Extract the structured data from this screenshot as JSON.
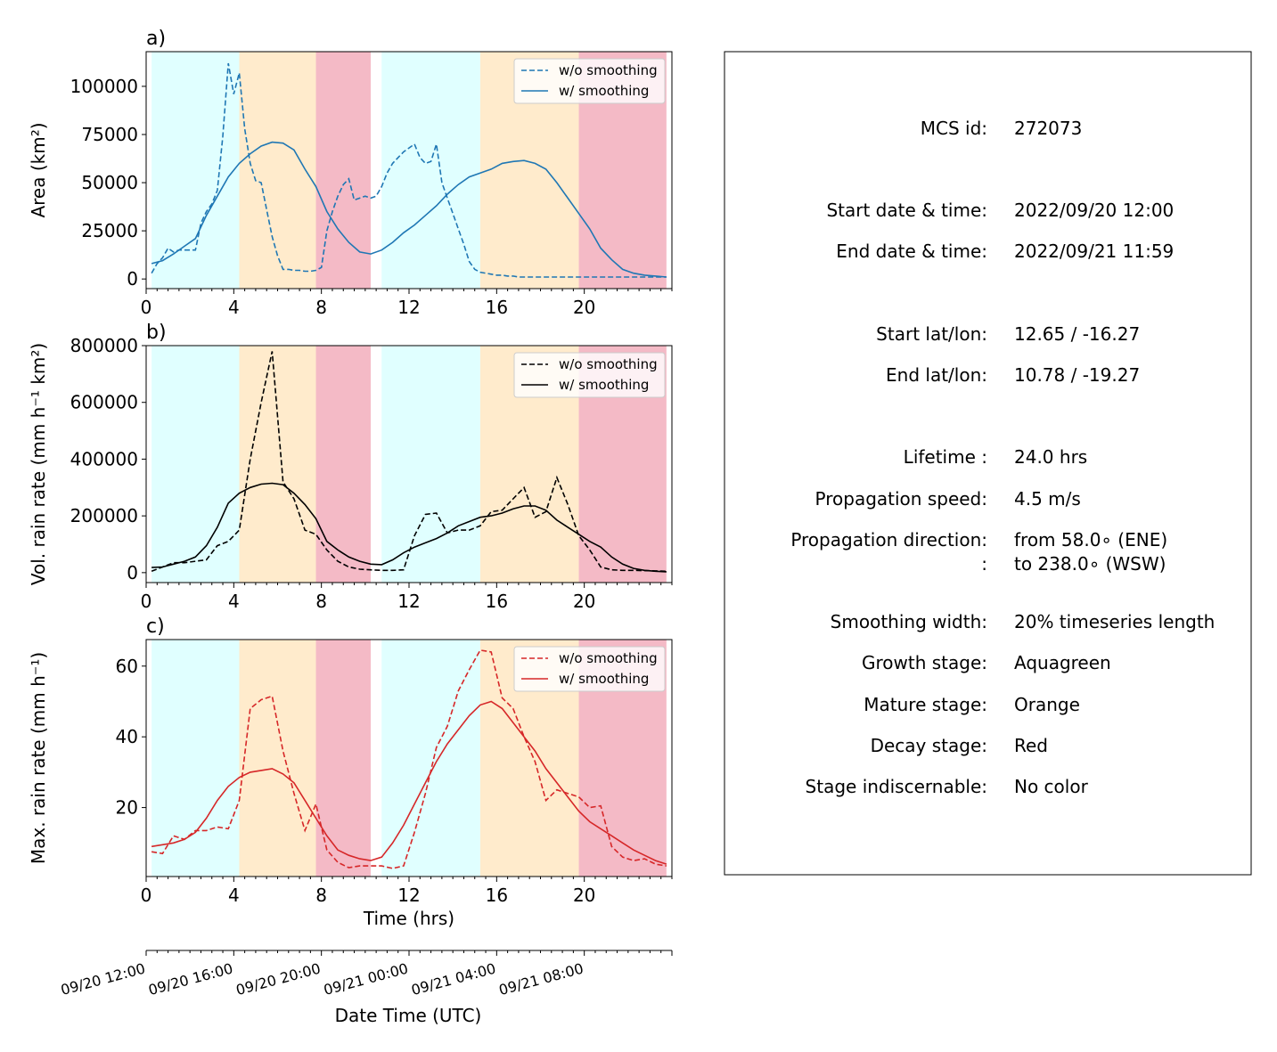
{
  "chart_data": [
    {
      "type": "line",
      "panel_label": "a)",
      "ylabel": "Area  (km²)",
      "xlim": [
        0,
        24
      ],
      "ylim": [
        -5000,
        118000
      ],
      "yticks": [
        0,
        25000,
        50000,
        75000,
        100000
      ],
      "xticks": [
        0,
        4,
        8,
        12,
        16,
        20
      ],
      "color": "#1f77b4",
      "legend": "top-right",
      "series": [
        {
          "name": "w/o smoothing",
          "style": "dashed",
          "x": [
            0.25,
            0.5,
            0.75,
            1.0,
            1.25,
            1.5,
            1.75,
            2.0,
            2.25,
            2.5,
            2.75,
            3.0,
            3.25,
            3.5,
            3.75,
            4.0,
            4.25,
            4.5,
            4.75,
            5.0,
            5.25,
            5.5,
            5.75,
            6.0,
            6.25,
            6.5,
            6.75,
            7.0,
            7.25,
            7.5,
            7.75,
            8.0,
            8.25,
            8.5,
            8.75,
            9.0,
            9.25,
            9.5,
            9.75,
            10.0,
            10.25,
            10.5,
            10.75,
            11.0,
            11.25,
            11.5,
            11.75,
            12.0,
            12.25,
            12.5,
            12.75,
            13.0,
            13.25,
            13.5,
            13.75,
            14.0,
            14.25,
            14.5,
            14.75,
            15.0,
            15.25,
            15.5,
            15.75,
            16.0,
            16.25,
            16.5,
            16.75,
            17.0,
            17.25,
            17.5,
            17.75,
            18.0,
            18.25,
            18.5,
            18.75,
            19.0,
            19.25,
            19.5,
            19.75,
            20.0,
            20.25,
            20.5,
            20.75,
            21.0,
            21.25,
            21.5,
            21.75,
            22.0,
            22.25,
            22.5,
            22.75,
            23.0,
            23.25,
            23.5,
            23.75
          ],
          "y": [
            3000,
            8000,
            11000,
            16000,
            14000,
            15000,
            15000,
            15000,
            15000,
            29000,
            35000,
            39000,
            46000,
            74000,
            112000,
            96000,
            107000,
            78000,
            60000,
            51000,
            50000,
            36000,
            22000,
            12000,
            5000,
            5000,
            4500,
            4500,
            4000,
            4000,
            4500,
            6000,
            25000,
            35000,
            43000,
            49000,
            52000,
            41000,
            42000,
            43000,
            42000,
            43000,
            48000,
            55000,
            60000,
            63000,
            66000,
            68000,
            70000,
            63000,
            60000,
            61000,
            70000,
            50000,
            42000,
            34000,
            26000,
            18000,
            9000,
            5000,
            3500,
            3000,
            2500,
            2000,
            2000,
            1500,
            1500,
            1000,
            1000,
            1000,
            1000,
            1000,
            1000,
            1000,
            1000,
            1000,
            1000,
            1000,
            1000,
            1000,
            1000,
            1000,
            1000,
            1000,
            1000,
            1000,
            1000,
            1000,
            1000,
            1000,
            1000,
            1000,
            1000,
            1000,
            1000
          ]
        },
        {
          "name": "w/ smoothing",
          "style": "solid",
          "x": [
            0.25,
            0.75,
            1.25,
            1.75,
            2.25,
            2.75,
            3.25,
            3.75,
            4.25,
            4.75,
            5.25,
            5.75,
            6.25,
            6.75,
            7.25,
            7.75,
            8.25,
            8.75,
            9.25,
            9.75,
            10.25,
            10.75,
            11.25,
            11.75,
            12.25,
            12.75,
            13.25,
            13.75,
            14.25,
            14.75,
            15.25,
            15.75,
            16.25,
            16.75,
            17.25,
            17.75,
            18.25,
            18.75,
            19.25,
            19.75,
            20.25,
            20.75,
            21.25,
            21.75,
            22.25,
            22.75,
            23.25,
            23.75
          ],
          "y": [
            8000,
            9500,
            13000,
            17000,
            21000,
            33000,
            43000,
            53000,
            60000,
            65000,
            69000,
            71000,
            70500,
            67000,
            57000,
            48000,
            35000,
            26000,
            19000,
            14000,
            13000,
            15000,
            19000,
            24000,
            28000,
            33000,
            38000,
            44000,
            49000,
            53000,
            55000,
            57000,
            60000,
            61000,
            61500,
            60000,
            57000,
            50000,
            42000,
            34000,
            26000,
            16000,
            10000,
            5000,
            3000,
            2000,
            1500,
            1000
          ]
        }
      ]
    },
    {
      "type": "line",
      "panel_label": "b)",
      "ylabel": "Vol. rain rate (mm h⁻¹ km²)",
      "xlim": [
        0,
        24
      ],
      "ylim": [
        -35000,
        800000
      ],
      "yticks": [
        0,
        200000,
        400000,
        600000,
        800000
      ],
      "xticks": [
        0,
        4,
        8,
        12,
        16,
        20
      ],
      "color": "#000000",
      "legend": "top-right",
      "series": [
        {
          "name": "w/o smoothing",
          "style": "dashed",
          "x": [
            0.25,
            0.75,
            1.25,
            1.75,
            2.25,
            2.75,
            3.25,
            3.75,
            4.25,
            4.75,
            5.25,
            5.75,
            6.25,
            6.75,
            7.25,
            7.75,
            8.25,
            8.75,
            9.25,
            9.75,
            10.25,
            10.75,
            11.25,
            11.75,
            12.25,
            12.75,
            13.25,
            13.75,
            14.25,
            14.75,
            15.25,
            15.75,
            16.25,
            16.75,
            17.25,
            17.75,
            18.25,
            18.75,
            19.25,
            19.75,
            20.25,
            20.75,
            21.25,
            21.75,
            22.25,
            22.75,
            23.25,
            23.75
          ],
          "y": [
            5000,
            20000,
            35000,
            35000,
            40000,
            45000,
            95000,
            110000,
            150000,
            400000,
            600000,
            780000,
            320000,
            260000,
            150000,
            135000,
            80000,
            40000,
            20000,
            12000,
            10000,
            8000,
            8000,
            10000,
            130000,
            205000,
            210000,
            140000,
            150000,
            150000,
            165000,
            215000,
            220000,
            260000,
            300000,
            195000,
            215000,
            335000,
            240000,
            130000,
            80000,
            20000,
            10000,
            8000,
            8000,
            7000,
            6000,
            5000
          ]
        },
        {
          "name": "w/ smoothing",
          "style": "solid",
          "x": [
            0.25,
            0.75,
            1.25,
            1.75,
            2.25,
            2.75,
            3.25,
            3.75,
            4.25,
            4.75,
            5.25,
            5.75,
            6.25,
            6.75,
            7.25,
            7.75,
            8.25,
            8.75,
            9.25,
            9.75,
            10.25,
            10.75,
            11.25,
            11.75,
            12.25,
            12.75,
            13.25,
            13.75,
            14.25,
            14.75,
            15.25,
            15.75,
            16.25,
            16.75,
            17.25,
            17.75,
            18.25,
            18.75,
            19.25,
            19.75,
            20.25,
            20.75,
            21.25,
            21.75,
            22.25,
            22.75,
            23.25,
            23.75
          ],
          "y": [
            18000,
            20000,
            30000,
            40000,
            55000,
            95000,
            160000,
            245000,
            280000,
            300000,
            312000,
            315000,
            310000,
            280000,
            240000,
            190000,
            110000,
            80000,
            55000,
            40000,
            30000,
            28000,
            45000,
            70000,
            90000,
            105000,
            120000,
            140000,
            165000,
            180000,
            195000,
            200000,
            210000,
            225000,
            235000,
            235000,
            220000,
            185000,
            160000,
            135000,
            110000,
            90000,
            55000,
            30000,
            15000,
            8000,
            5000,
            3000
          ]
        }
      ]
    },
    {
      "type": "line",
      "panel_label": "c)",
      "ylabel": "Max. rain rate  (mm h⁻¹)",
      "xlim": [
        0,
        24
      ],
      "ylim": [
        0.5,
        67.5
      ],
      "yticks": [
        20,
        40,
        60
      ],
      "xticks": [
        0,
        4,
        8,
        12,
        16,
        20
      ],
      "xlabel": "Time (hrs)",
      "color": "#d62728",
      "legend": "top-right",
      "series": [
        {
          "name": "w/o smoothing",
          "style": "dashed",
          "x": [
            0.25,
            0.75,
            1.25,
            1.75,
            2.25,
            2.75,
            3.25,
            3.75,
            4.25,
            4.75,
            5.25,
            5.75,
            6.25,
            6.75,
            7.25,
            7.75,
            8.25,
            8.75,
            9.25,
            9.75,
            10.25,
            10.75,
            11.25,
            11.75,
            12.25,
            12.75,
            13.25,
            13.75,
            14.25,
            14.75,
            15.25,
            15.75,
            16.25,
            16.75,
            17.25,
            17.75,
            18.25,
            18.75,
            19.25,
            19.75,
            20.25,
            20.75,
            21.25,
            21.75,
            22.25,
            22.75,
            23.25,
            23.75
          ],
          "y": [
            7.5,
            7,
            12,
            11,
            13.5,
            13.5,
            14.5,
            14,
            22,
            48,
            50.5,
            51.5,
            36,
            24,
            13.5,
            21,
            8,
            4.5,
            3,
            3.5,
            3.5,
            3.5,
            2.8,
            3.5,
            13,
            24,
            37,
            43,
            53,
            59,
            64.5,
            64,
            51,
            48,
            40,
            33,
            22,
            25,
            24,
            23,
            20,
            20.5,
            9,
            6,
            5,
            5.5,
            4,
            3.5
          ]
        },
        {
          "name": "w/ smoothing",
          "style": "solid",
          "x": [
            0.25,
            0.75,
            1.25,
            1.75,
            2.25,
            2.75,
            3.25,
            3.75,
            4.25,
            4.75,
            5.25,
            5.75,
            6.25,
            6.75,
            7.25,
            7.75,
            8.25,
            8.75,
            9.25,
            9.75,
            10.25,
            10.75,
            11.25,
            11.75,
            12.25,
            12.75,
            13.25,
            13.75,
            14.25,
            14.75,
            15.25,
            15.75,
            16.25,
            16.75,
            17.25,
            17.75,
            18.25,
            18.75,
            19.25,
            19.75,
            20.25,
            20.75,
            21.25,
            21.75,
            22.25,
            22.75,
            23.25,
            23.75
          ],
          "y": [
            9,
            9.5,
            10,
            11,
            13,
            17,
            22,
            26,
            28.5,
            30,
            30.5,
            31,
            29.5,
            27,
            22,
            17,
            12,
            8,
            6.5,
            5.5,
            5,
            6,
            10,
            15,
            21,
            27,
            33,
            38,
            42,
            46,
            49,
            50,
            48,
            44,
            40,
            36,
            31,
            27,
            23,
            19,
            16,
            14,
            12,
            10,
            8,
            6.5,
            5,
            4
          ]
        }
      ]
    }
  ],
  "stages": [
    {
      "name": "growth",
      "start": 0.25,
      "end": 4.25,
      "color": "#e0ffff"
    },
    {
      "name": "mature",
      "start": 4.25,
      "end": 7.75,
      "color": "#ffebcc"
    },
    {
      "name": "decay",
      "start": 7.75,
      "end": 10.25,
      "color": "#f4bac6"
    },
    {
      "name": "growth",
      "start": 10.75,
      "end": 15.25,
      "color": "#e0ffff"
    },
    {
      "name": "mature",
      "start": 15.25,
      "end": 19.75,
      "color": "#ffebcc"
    },
    {
      "name": "decay",
      "start": 19.75,
      "end": 23.75,
      "color": "#f4bac6"
    }
  ],
  "date_axis": {
    "labels": [
      "09/20 12:00",
      "09/20 16:00",
      "09/20 20:00",
      "09/21 00:00",
      "09/21 04:00",
      "09/21 08:00"
    ],
    "xlabel": "Date Time (UTC)"
  },
  "info": {
    "mcs_id_label": "MCS id:",
    "mcs_id_value": "272073",
    "start_time_label": "Start date & time:",
    "start_time_value": "2022/09/20 12:00",
    "end_time_label": "End date & time:",
    "end_time_value": "2022/09/21 11:59",
    "start_latlon_label": "Start lat/lon:",
    "start_latlon_value": "12.65 / -16.27",
    "end_latlon_label": "End lat/lon:",
    "end_latlon_value": "10.78 / -19.27",
    "lifetime_label": "Lifetime :",
    "lifetime_value": "24.0 hrs",
    "speed_label": "Propagation speed:",
    "speed_value": "4.5 m/s",
    "direction_label": "Propagation direction:",
    "direction_value_from": "from  58.0∘ (ENE)",
    "direction_label_2": ":",
    "direction_value_to": "to   238.0∘ (WSW)",
    "smoothing_label": "Smoothing width:",
    "smoothing_value": "20% timeseries length",
    "growth_label": "Growth stage:",
    "growth_value": "Aquagreen",
    "mature_label": "Mature stage:",
    "mature_value": "Orange",
    "decay_label": "Decay stage:",
    "decay_value": "Red",
    "indisc_label": "Stage indiscernable:",
    "indisc_value": "No color"
  }
}
